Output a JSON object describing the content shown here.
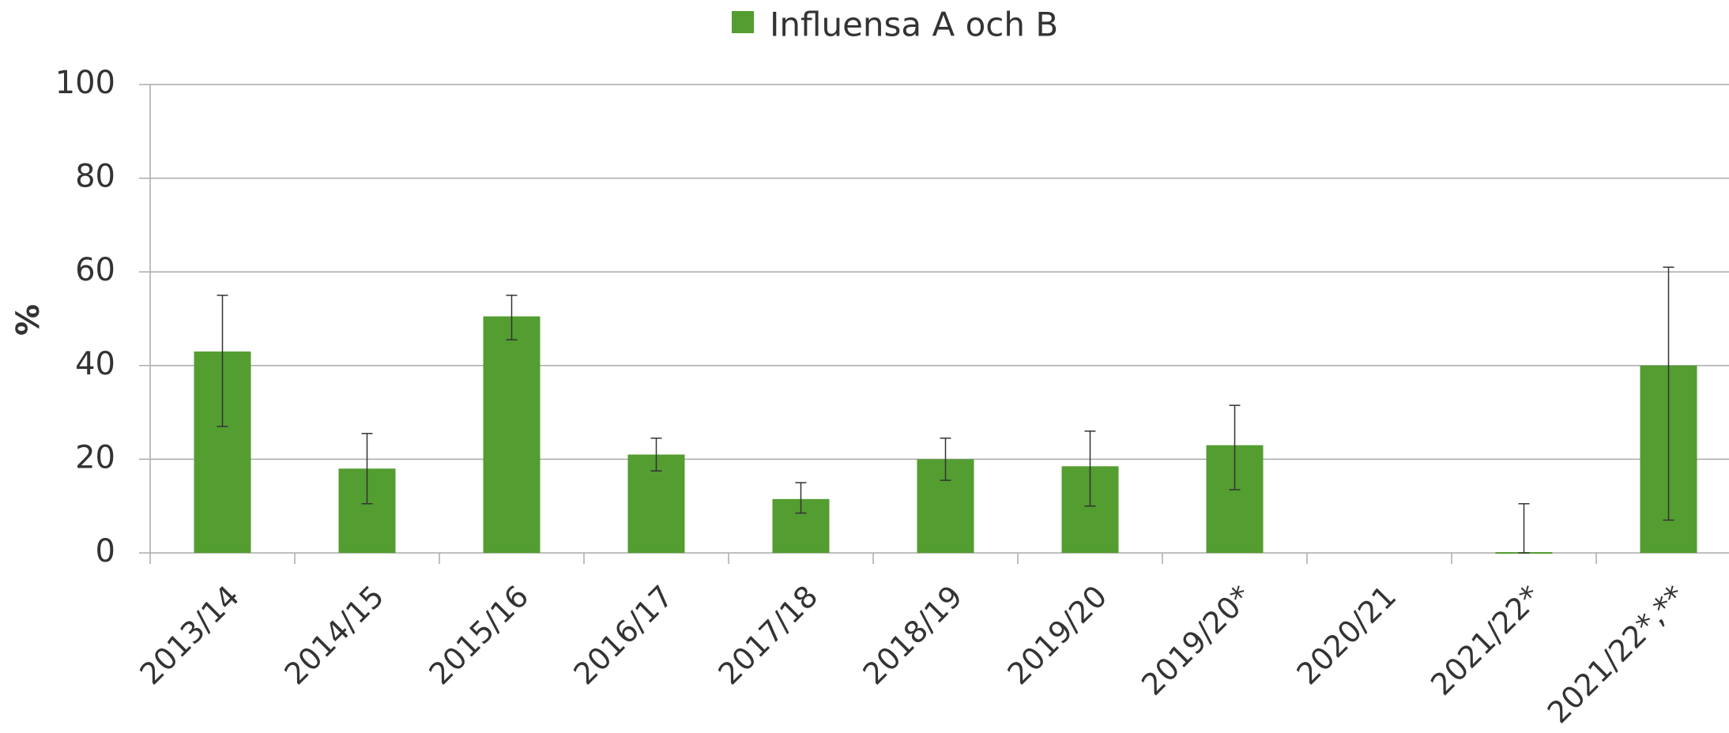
{
  "chart_data": {
    "type": "bar",
    "ylabel": "%",
    "series": [
      {
        "name": "Influensa A och B",
        "color": "#539d31",
        "values": [
          43,
          18,
          50.5,
          21,
          11.5,
          20,
          18.5,
          23,
          null,
          0,
          40
        ],
        "ci_low": [
          27,
          10.5,
          45.5,
          17.5,
          8.5,
          15.5,
          10,
          13.5,
          null,
          0,
          7
        ],
        "ci_high": [
          55,
          25.5,
          55,
          24.5,
          15,
          24.5,
          26,
          31.5,
          null,
          10.5,
          61
        ]
      }
    ],
    "categories": [
      "2013/14",
      "2014/15",
      "2015/16",
      "2016/17",
      "2017/18",
      "2018/19",
      "2019/20",
      "2019/20*",
      "2020/21",
      "2021/22*",
      "2021/22*,**"
    ],
    "ylim": [
      0,
      100
    ],
    "yticks": [
      0,
      20,
      40,
      60,
      80,
      100
    ],
    "grid": true,
    "legend": "top"
  }
}
